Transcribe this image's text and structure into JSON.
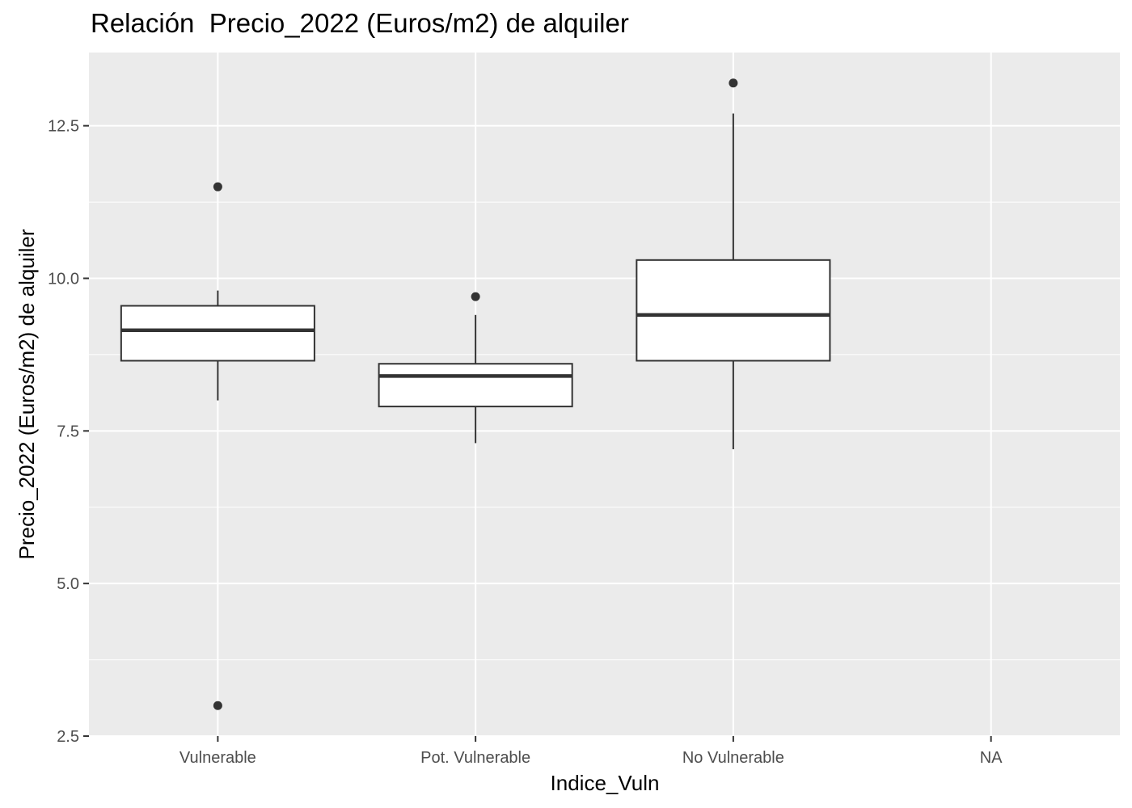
{
  "chart_data": {
    "type": "boxplot",
    "title": "Relación  Precio_2022 (Euros/m2) de alquiler",
    "xlabel": "Indice_Vuln",
    "ylabel": "Precio_2022 (Euros/m2) de alquiler",
    "categories": [
      "Vulnerable",
      "Pot. Vulnerable",
      "No Vulnerable",
      "NA"
    ],
    "ylim": [
      2.5,
      13.7
    ],
    "yticks": [
      2.5,
      5.0,
      7.5,
      10.0,
      12.5
    ],
    "ytick_labels": [
      "2.5",
      "5.0",
      "7.5",
      "10.0",
      "12.5"
    ],
    "boxes": [
      {
        "category": "Vulnerable",
        "whisker_low": 8.0,
        "q1": 8.65,
        "median": 9.15,
        "q3": 9.55,
        "whisker_high": 9.8,
        "outliers": [
          11.5,
          3.0
        ]
      },
      {
        "category": "Pot. Vulnerable",
        "whisker_low": 7.3,
        "q1": 7.9,
        "median": 8.4,
        "q3": 8.6,
        "whisker_high": 9.4,
        "outliers": [
          9.7
        ]
      },
      {
        "category": "No Vulnerable",
        "whisker_low": 7.2,
        "q1": 8.65,
        "median": 9.4,
        "q3": 10.3,
        "whisker_high": 12.7,
        "outliers": [
          13.2
        ]
      },
      {
        "category": "NA",
        "whisker_low": null,
        "q1": null,
        "median": null,
        "q3": null,
        "whisker_high": null,
        "outliers": []
      }
    ],
    "grid": true,
    "legend": "none",
    "colors": {
      "panel_background": "#ebebeb",
      "grid": "#ffffff",
      "box_fill": "#ffffff",
      "box_line": "#333333",
      "tick_text": "#4d4d4d"
    }
  }
}
